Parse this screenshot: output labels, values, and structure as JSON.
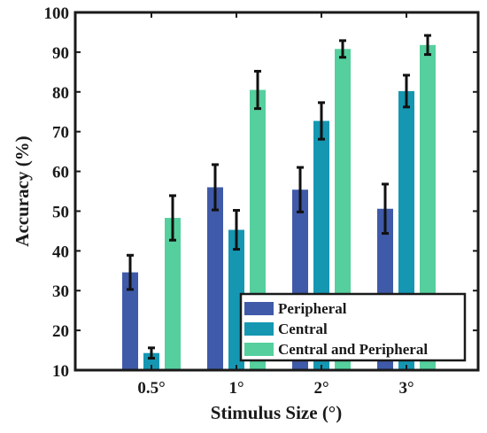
{
  "chart_data": {
    "type": "bar",
    "xlabel": "Stimulus Size (°)",
    "ylabel": "Accuracy (%)",
    "ylim": [
      10,
      100
    ],
    "yticks": [
      10,
      20,
      30,
      40,
      50,
      60,
      70,
      80,
      90,
      100
    ],
    "categories": [
      "0.5°",
      "1°",
      "2°",
      "3°"
    ],
    "series": [
      {
        "name": "Peripheral",
        "color": "#3f5aa8",
        "values": [
          34.6,
          56.0,
          55.4,
          50.6
        ],
        "errors": [
          4.3,
          5.7,
          5.6,
          6.2
        ]
      },
      {
        "name": "Central",
        "color": "#1597b2",
        "values": [
          14.3,
          45.3,
          72.7,
          80.2
        ],
        "errors": [
          1.3,
          4.9,
          4.6,
          4.0
        ]
      },
      {
        "name": "Central and Peripheral",
        "color": "#55cf9d",
        "values": [
          48.3,
          80.5,
          90.8,
          91.8
        ],
        "errors": [
          5.6,
          4.7,
          2.1,
          2.4
        ]
      }
    ],
    "error_bars": true,
    "grid": false,
    "legend_position": "bottom-right"
  }
}
